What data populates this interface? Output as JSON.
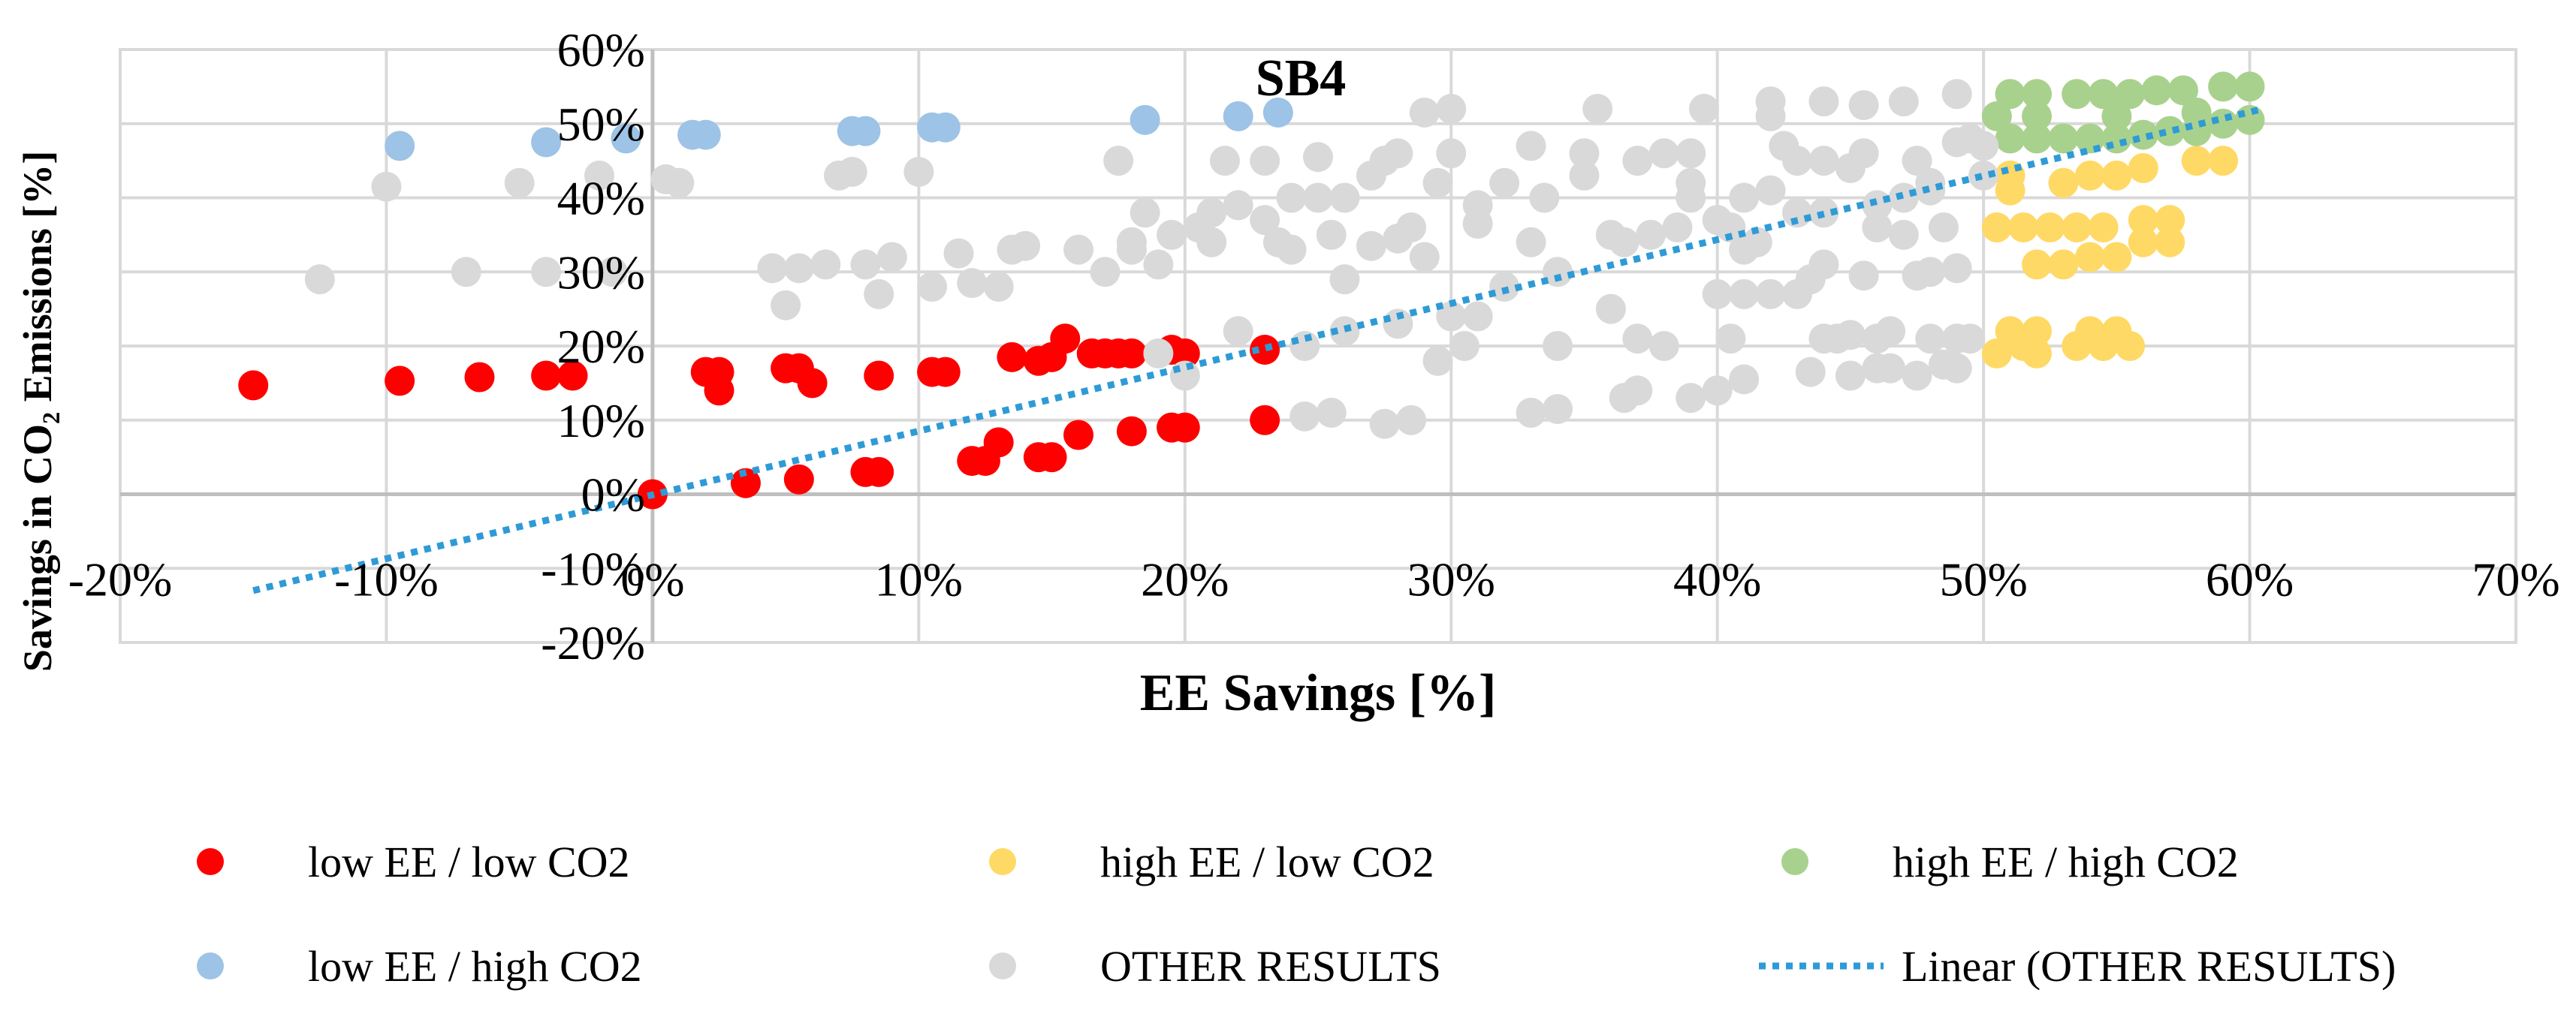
{
  "chart_data": {
    "type": "scatter",
    "title": "SB4",
    "xlabel": "EE Savings [%]",
    "ylabel": "Savings in CO₂ Emissions [%]",
    "xlim": [
      -20,
      70
    ],
    "ylim": [
      -20,
      60
    ],
    "xticks": [
      -20,
      -10,
      0,
      10,
      20,
      30,
      40,
      50,
      60,
      70
    ],
    "yticks": [
      -20,
      -10,
      0,
      10,
      20,
      30,
      40,
      50,
      60
    ],
    "x_tick_labels": [
      "-20%",
      "-10%",
      "0%",
      "10%",
      "20%",
      "30%",
      "40%",
      "50%",
      "60%",
      "70%"
    ],
    "y_tick_labels": [
      "-20%",
      "-10%",
      "0%",
      "10%",
      "20%",
      "30%",
      "40%",
      "50%",
      "60%"
    ],
    "grid": true,
    "legend_position": "bottom",
    "series": [
      {
        "name": "low EE / low CO2",
        "color": "#ff0000",
        "points": [
          [
            -15,
            14.7
          ],
          [
            -9.5,
            15.3
          ],
          [
            -6.5,
            15.8
          ],
          [
            -4,
            16
          ],
          [
            -3,
            16
          ],
          [
            0,
            0
          ],
          [
            2,
            16.5
          ],
          [
            2.5,
            14
          ],
          [
            2.5,
            16.5
          ],
          [
            3.5,
            1.5
          ],
          [
            5,
            17
          ],
          [
            5.5,
            17
          ],
          [
            5.5,
            2
          ],
          [
            6,
            15
          ],
          [
            8,
            3
          ],
          [
            8.5,
            3
          ],
          [
            8.5,
            16
          ],
          [
            10.5,
            16.5
          ],
          [
            11,
            16.5
          ],
          [
            12,
            4.5
          ],
          [
            12.5,
            4.5
          ],
          [
            13,
            7
          ],
          [
            13.5,
            18.5
          ],
          [
            14.5,
            5
          ],
          [
            14.5,
            18
          ],
          [
            15,
            5
          ],
          [
            15,
            18.5
          ],
          [
            15.5,
            21
          ],
          [
            16,
            8
          ],
          [
            16.5,
            19
          ],
          [
            17,
            19
          ],
          [
            17.5,
            19
          ],
          [
            18,
            19
          ],
          [
            18,
            8.5
          ],
          [
            19.5,
            9
          ],
          [
            20,
            9
          ],
          [
            19.5,
            19.5
          ],
          [
            20,
            19
          ],
          [
            23,
            19.5
          ],
          [
            23,
            10
          ]
        ]
      },
      {
        "name": "high EE / low CO2",
        "color": "#ffd966",
        "points": [
          [
            50.5,
            19
          ],
          [
            51,
            22
          ],
          [
            51.5,
            20
          ],
          [
            52,
            19
          ],
          [
            52,
            22
          ],
          [
            50.5,
            36
          ],
          [
            51.5,
            36
          ],
          [
            52.5,
            36
          ],
          [
            53.5,
            36
          ],
          [
            54.5,
            36
          ],
          [
            51,
            41
          ],
          [
            51,
            43
          ],
          [
            52,
            31
          ],
          [
            53,
            31
          ],
          [
            54,
            32
          ],
          [
            55,
            32
          ],
          [
            53,
            42
          ],
          [
            54,
            43
          ],
          [
            55,
            43
          ],
          [
            56,
            44
          ],
          [
            53.5,
            20
          ],
          [
            54.5,
            20
          ],
          [
            55.5,
            20
          ],
          [
            54,
            22
          ],
          [
            55,
            22
          ],
          [
            56,
            34
          ],
          [
            57,
            34
          ],
          [
            56,
            37
          ],
          [
            57,
            37
          ],
          [
            58,
            45
          ],
          [
            59,
            45
          ]
        ]
      },
      {
        "name": "high EE / high CO2",
        "color": "#a9d18e",
        "points": [
          [
            51,
            48
          ],
          [
            52,
            48
          ],
          [
            53,
            48
          ],
          [
            54,
            48
          ],
          [
            55,
            48
          ],
          [
            56,
            48.5
          ],
          [
            57,
            49
          ],
          [
            58,
            49
          ],
          [
            59,
            50
          ],
          [
            60,
            50.5
          ],
          [
            51,
            54
          ],
          [
            52,
            54
          ],
          [
            53.5,
            54
          ],
          [
            54.5,
            54
          ],
          [
            55.5,
            54
          ],
          [
            56.5,
            54.5
          ],
          [
            57.5,
            54.5
          ],
          [
            59,
            55
          ],
          [
            60,
            55
          ],
          [
            52,
            51
          ],
          [
            55,
            51
          ],
          [
            58,
            51.5
          ],
          [
            50.5,
            51
          ]
        ]
      },
      {
        "name": "low EE / high CO2",
        "color": "#9dc3e6",
        "points": [
          [
            -9.5,
            47
          ],
          [
            -4,
            47.5
          ],
          [
            -1,
            48
          ],
          [
            1.5,
            48.5
          ],
          [
            2,
            48.5
          ],
          [
            7.5,
            49
          ],
          [
            8,
            49
          ],
          [
            10.5,
            49.5
          ],
          [
            11,
            49.5
          ],
          [
            18.5,
            50.5
          ],
          [
            22,
            51
          ],
          [
            23.5,
            51.5
          ]
        ]
      },
      {
        "name": "OTHER RESULTS",
        "color": "#d9d9d9",
        "points": [
          [
            -12.5,
            29
          ],
          [
            -10,
            41.5
          ],
          [
            -7,
            30
          ],
          [
            -5,
            42
          ],
          [
            -4,
            30
          ],
          [
            -2,
            43
          ],
          [
            -1.5,
            30
          ],
          [
            0.5,
            42.5
          ],
          [
            1,
            42
          ],
          [
            4.5,
            30.5
          ],
          [
            5,
            25.5
          ],
          [
            5.5,
            30.5
          ],
          [
            6.5,
            31
          ],
          [
            7,
            43
          ],
          [
            7.5,
            43.5
          ],
          [
            8,
            31
          ],
          [
            8.5,
            27
          ],
          [
            9,
            32
          ],
          [
            10,
            43.5
          ],
          [
            10.5,
            28
          ],
          [
            11.5,
            32.5
          ],
          [
            12,
            28.5
          ],
          [
            13,
            28
          ],
          [
            13.5,
            33
          ],
          [
            14,
            33.5
          ],
          [
            16,
            33
          ],
          [
            17,
            30
          ],
          [
            17.5,
            45
          ],
          [
            18,
            33
          ],
          [
            18.5,
            38
          ],
          [
            18,
            34
          ],
          [
            19,
            31
          ],
          [
            19.5,
            35
          ],
          [
            20.5,
            36
          ],
          [
            21,
            34
          ],
          [
            21.5,
            45
          ],
          [
            22,
            39
          ],
          [
            23,
            45
          ],
          [
            23.5,
            34
          ],
          [
            24,
            40
          ],
          [
            24.5,
            20
          ],
          [
            25,
            45.5
          ],
          [
            25.5,
            35
          ],
          [
            26,
            40
          ],
          [
            27,
            33.5
          ],
          [
            27.5,
            45
          ],
          [
            28,
            46
          ],
          [
            28,
            34.5
          ],
          [
            28.5,
            36
          ],
          [
            29,
            51.5
          ],
          [
            29.5,
            42
          ],
          [
            30,
            52
          ],
          [
            30,
            46
          ],
          [
            30.5,
            20
          ],
          [
            31,
            24
          ],
          [
            31,
            36.5
          ],
          [
            32,
            42
          ],
          [
            33,
            34
          ],
          [
            33.5,
            40
          ],
          [
            34,
            20
          ],
          [
            35,
            46
          ],
          [
            35.5,
            52
          ],
          [
            36,
            25
          ],
          [
            36.5,
            34
          ],
          [
            37,
            21
          ],
          [
            37.5,
            35
          ],
          [
            38,
            20
          ],
          [
            38.5,
            36
          ],
          [
            39,
            46
          ],
          [
            39,
            42
          ],
          [
            39.5,
            52
          ],
          [
            40,
            27
          ],
          [
            40.5,
            36
          ],
          [
            41,
            40
          ],
          [
            41.5,
            34
          ],
          [
            42,
            51
          ],
          [
            42,
            53
          ],
          [
            42.5,
            47
          ],
          [
            43,
            45
          ],
          [
            43,
            27
          ],
          [
            43.5,
            29
          ],
          [
            44,
            53
          ],
          [
            44,
            38
          ],
          [
            44.5,
            21
          ],
          [
            45,
            44
          ],
          [
            45.5,
            52.5
          ],
          [
            45.5,
            46
          ],
          [
            46,
            36
          ],
          [
            46,
            21
          ],
          [
            46.5,
            17
          ],
          [
            47,
            53
          ],
          [
            47,
            40
          ],
          [
            47.5,
            45
          ],
          [
            47.5,
            29.5
          ],
          [
            48,
            42
          ],
          [
            48.5,
            36
          ],
          [
            49,
            54
          ],
          [
            49,
            17
          ],
          [
            49.5,
            21
          ],
          [
            49.5,
            48
          ],
          [
            50,
            43
          ],
          [
            24.5,
            10.5
          ],
          [
            25.5,
            11
          ],
          [
            27.5,
            9.5
          ],
          [
            28.5,
            10
          ],
          [
            29.5,
            18
          ],
          [
            33,
            11
          ],
          [
            34,
            11.5
          ],
          [
            36.5,
            13
          ],
          [
            37,
            14
          ],
          [
            39,
            13
          ],
          [
            40,
            14
          ],
          [
            41,
            15.5
          ],
          [
            43.5,
            16.5
          ],
          [
            45,
            16
          ],
          [
            46,
            17
          ],
          [
            47.5,
            16
          ],
          [
            48.5,
            17.5
          ],
          [
            49,
            21
          ],
          [
            40.5,
            21
          ],
          [
            42,
            27
          ],
          [
            44,
            21
          ],
          [
            45,
            21.5
          ],
          [
            46.5,
            22
          ],
          [
            48,
            21
          ],
          [
            44,
            31
          ],
          [
            45.5,
            29.5
          ],
          [
            47,
            35
          ],
          [
            48,
            30
          ],
          [
            49,
            30.5
          ],
          [
            46,
            39
          ],
          [
            48,
            41
          ],
          [
            50,
            47
          ],
          [
            49,
            47.5
          ],
          [
            44,
            45
          ],
          [
            42,
            41
          ],
          [
            43,
            38
          ],
          [
            40,
            37
          ],
          [
            41,
            33
          ],
          [
            38,
            46
          ],
          [
            36,
            35
          ],
          [
            34,
            30
          ],
          [
            32,
            28
          ],
          [
            30,
            24
          ],
          [
            28,
            23
          ],
          [
            26,
            22
          ],
          [
            22,
            22
          ],
          [
            20,
            16
          ],
          [
            19,
            19
          ],
          [
            25,
            40
          ],
          [
            27,
            43
          ],
          [
            23,
            37
          ],
          [
            24,
            33
          ],
          [
            21,
            38
          ],
          [
            26,
            29
          ],
          [
            29,
            32
          ],
          [
            31,
            39
          ],
          [
            33,
            47
          ],
          [
            37,
            45
          ],
          [
            35,
            43
          ],
          [
            39,
            40
          ],
          [
            41,
            27
          ]
        ]
      }
    ],
    "trendline": {
      "name": "Linear (OTHER RESULTS)",
      "color": "#2e9bd6",
      "style": "dotted",
      "x": [
        -15,
        60.5
      ],
      "y": [
        -13,
        52
      ]
    },
    "legend": [
      {
        "label": "low EE / low CO2",
        "color": "#ff0000",
        "kind": "marker"
      },
      {
        "label": "high EE / low CO2",
        "color": "#ffd966",
        "kind": "marker"
      },
      {
        "label": "high EE / high CO2",
        "color": "#a9d18e",
        "kind": "marker"
      },
      {
        "label": "low EE / high CO2",
        "color": "#9dc3e6",
        "kind": "marker"
      },
      {
        "label": "OTHER RESULTS",
        "color": "#d9d9d9",
        "kind": "marker"
      },
      {
        "label": "Linear (OTHER RESULTS)",
        "color": "#2e9bd6",
        "kind": "line"
      }
    ]
  }
}
